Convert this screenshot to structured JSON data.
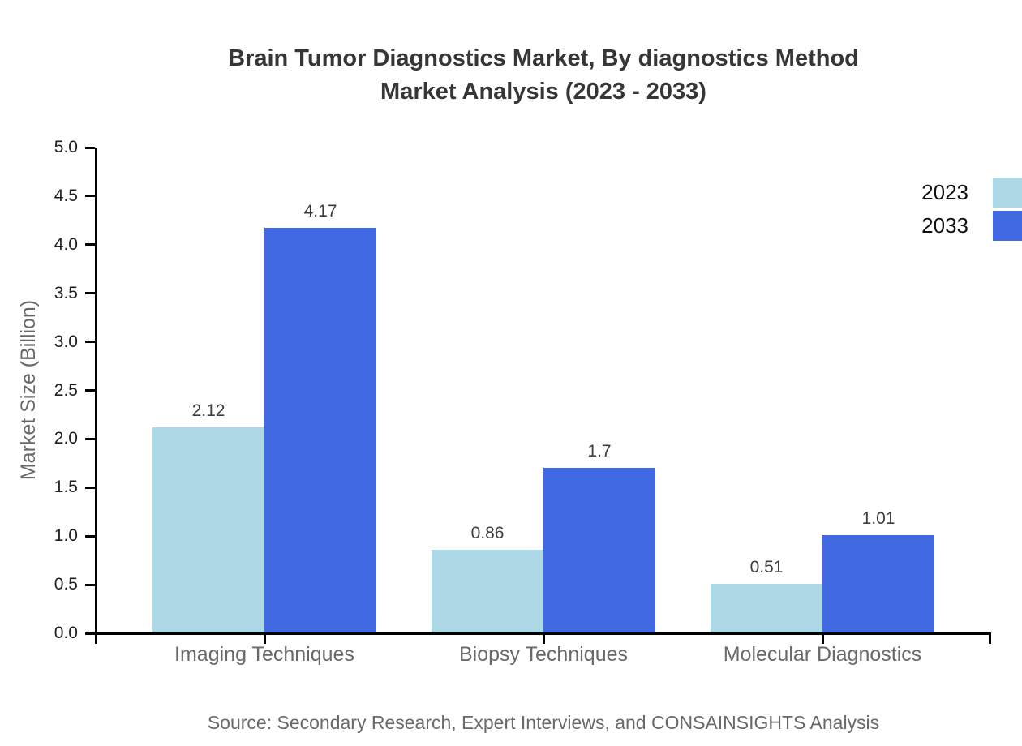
{
  "title": {
    "line1": "Brain Tumor Diagnostics Market, By diagnostics Method",
    "line2": "Market Analysis (2023 - 2033)"
  },
  "source_note": "Source: Secondary Research, Expert Interviews, and CONSAINSIGHTS Analysis",
  "chart_data": {
    "type": "bar",
    "title": "Brain Tumor Diagnostics Market, By diagnostics Method Market Analysis (2023 - 2033)",
    "categories": [
      "Imaging Techniques",
      "Biopsy Techniques",
      "Molecular Diagnostics"
    ],
    "series": [
      {
        "name": "2023",
        "color": "#ADD8E6",
        "values": [
          2.12,
          0.86,
          0.51
        ],
        "value_labels": [
          "2.12",
          "0.86",
          "0.51"
        ]
      },
      {
        "name": "2033",
        "color": "#4169E1",
        "values": [
          4.17,
          1.7,
          1.01
        ],
        "value_labels": [
          "4.17",
          "1.7",
          "1.01"
        ]
      }
    ],
    "xlabel": "",
    "ylabel": "Market Size (Billion)",
    "ylim": [
      0,
      5
    ],
    "ytick_step": 0.5,
    "ytick_labels": [
      "0.0",
      "0.5",
      "1.0",
      "1.5",
      "2.0",
      "2.5",
      "3.0",
      "3.5",
      "4.0",
      "4.5",
      "5.0"
    ],
    "grid": false,
    "legend": {
      "position": "top-right",
      "entries": [
        "2023",
        "2033"
      ]
    },
    "bar_value_labels_shown": true
  },
  "colors": {
    "series_2023": "#ADD8E6",
    "series_2033": "#4169E1",
    "title_text": "#363636",
    "axis_line": "#000000",
    "tick_label": "#1f1f1f",
    "muted_label": "#696969",
    "value_label": "#3d3d3d",
    "background": "#ffffff"
  }
}
